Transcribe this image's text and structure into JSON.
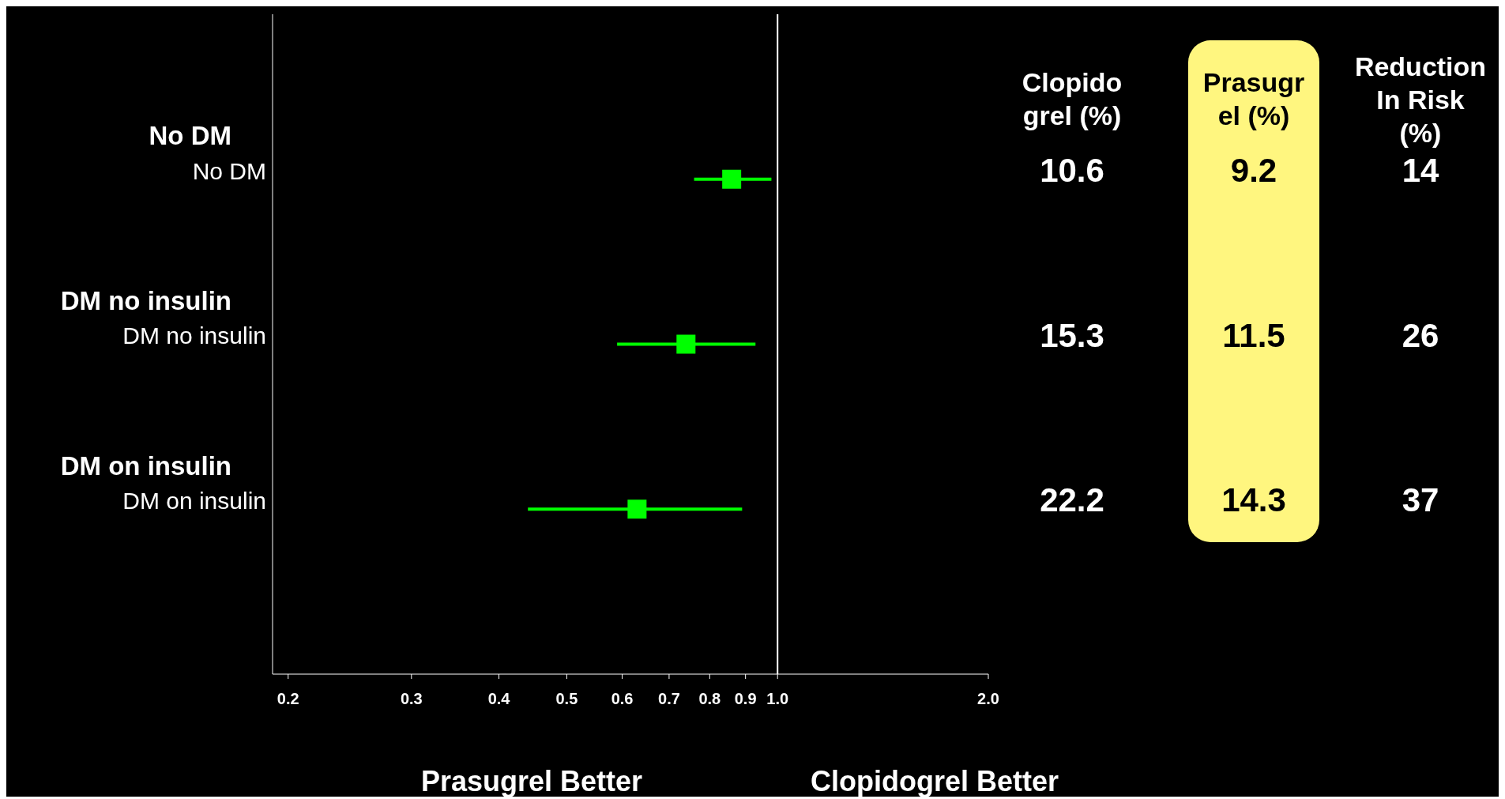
{
  "chart_data": {
    "type": "scatter",
    "orientation": "horizontal",
    "log": "x",
    "marker": "square",
    "categories": [
      "No DM",
      "DM no insulin",
      "DM on insulin"
    ],
    "values": [
      0.86,
      0.74,
      0.63
    ],
    "errors": [
      [
        0.76,
        0.98
      ],
      [
        0.59,
        0.93
      ],
      [
        0.44,
        0.89
      ]
    ],
    "color": "#00ff00",
    "xlim": [
      0.19,
      2.0
    ],
    "xticks": [
      {
        "value": 0.2,
        "label": "0.2"
      },
      {
        "value": 0.3,
        "label": "0.3"
      },
      {
        "value": 0.4,
        "label": "0.4"
      },
      {
        "value": 0.5,
        "label": "0.5"
      },
      {
        "value": 0.6,
        "label": "0.6"
      },
      {
        "value": 0.7,
        "label": "0.7"
      },
      {
        "value": 0.8,
        "label": "0.8"
      },
      {
        "value": 0.9,
        "label": "0.9"
      },
      {
        "value": 1.0,
        "label": "1.0"
      },
      {
        "value": 2.0,
        "label": "2.0"
      }
    ],
    "ref_lines": [
      {
        "axis": "x",
        "value": 1.0,
        "color": "#ffffff"
      }
    ],
    "annotations": [
      "Clopido\ngrel (%)",
      "Prasugr\nel (%)",
      "Reduction\nIn Risk\n(%)",
      "Prasugrel Better",
      "Clopidogrel Better",
      "No DM",
      "10.6",
      "9.2",
      "14",
      "DM no insulin",
      "15.3",
      "11.5",
      "26",
      "DM on insulin",
      "22.2",
      "14.3",
      "37"
    ]
  }
}
